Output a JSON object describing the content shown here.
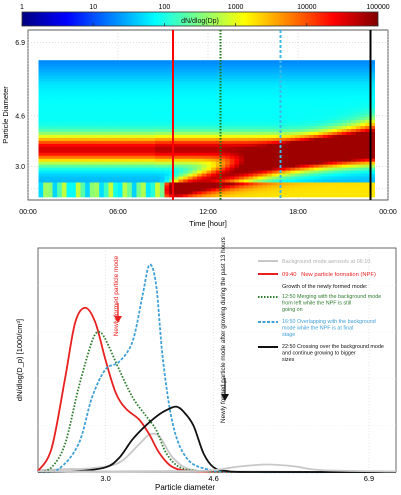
{
  "chart_data": [
    {
      "type": "heatmap",
      "colorbar": {
        "label": "dN/dlog(Dp)",
        "ticks": [
          "1",
          "10",
          "100",
          "1000",
          "10000",
          "100000"
        ],
        "scale": "log",
        "range": [
          1,
          100000
        ],
        "colors": [
          "#00007f",
          "#0000ff",
          "#0080ff",
          "#00ffff",
          "#80ff80",
          "#ffff00",
          "#ff8000",
          "#ff0000",
          "#7f0000"
        ]
      },
      "xlabel": "Time [hour]",
      "ylabel": "Particle Diameter",
      "x_ticks": [
        "00:00",
        "06:00",
        "12:00",
        "18:00",
        "00:00"
      ],
      "y_ticks": [
        "6.9",
        "4.6",
        "3.0"
      ],
      "xlim": [
        0,
        24
      ],
      "ylim": [
        1.95,
        7.3
      ],
      "grid": true,
      "vlines": [
        {
          "time": "09:40",
          "color": "#ff0000",
          "style": "solid"
        },
        {
          "time": "12:50",
          "color": "#1a7a1a",
          "style": "dotted"
        },
        {
          "time": "16:50",
          "color": "#3fb8e8",
          "style": "dashed"
        },
        {
          "time": "22:50",
          "color": "#000000",
          "style": "solid"
        }
      ]
    },
    {
      "type": "line",
      "xlabel": "Particle diameter",
      "ylabel": "dN/dlog(D_p) [1000/cm³]",
      "x_ticks": [
        "3.0",
        "4.6",
        "6.9"
      ],
      "xlim": [
        2.0,
        7.3
      ],
      "ylim": [
        0,
        24
      ],
      "legend": {
        "placement": "right",
        "header": "Growth of the newly formed mode:",
        "entries": [
          {
            "time": "",
            "text": "Background mode aerosols at 06:10",
            "color": "#c8c8c8",
            "style": "solid"
          },
          {
            "time": "09:40",
            "text": "New particle formation (NPF)",
            "color": "#e82020",
            "style": "solid"
          },
          {
            "time": "12:50",
            "text": "Merging with the background mode from left while the NPF is still going on",
            "color": "#2e7d2e",
            "style": "dotted"
          },
          {
            "time": "16:50",
            "text": "Overlapping with the background mode while the NPF is at final stage",
            "color": "#3fa0d8",
            "style": "dashed"
          },
          {
            "time": "22:50",
            "text": "Crossing over the background mode and continue growing to bigger sizes",
            "color": "#111111",
            "style": "solid"
          }
        ]
      },
      "annotations": [
        {
          "text": "Newly formed particle mode",
          "color": "#e82020"
        },
        {
          "text": "Newly formed particle mode after growing during the past 13 hours",
          "color": "#111111"
        }
      ],
      "series": [
        {
          "time": "06:10",
          "color": "#c8c8c8",
          "x": [
            2.0,
            2.4,
            2.8,
            3.2,
            3.5,
            3.65,
            3.8,
            4.0,
            4.3,
            5.0,
            7.3
          ],
          "y": [
            0.2,
            0.3,
            0.4,
            1.0,
            3.0,
            4.0,
            3.8,
            1.5,
            0.2,
            0.05,
            0
          ]
        },
        {
          "time": "09:40",
          "color": "#e82020",
          "x": [
            2.0,
            2.2,
            2.4,
            2.55,
            2.7,
            2.85,
            3.0,
            3.15,
            3.3,
            3.5,
            3.65,
            3.8,
            4.0,
            4.3,
            5.0,
            7.3
          ],
          "y": [
            0.1,
            2.5,
            10.0,
            16.0,
            17.6,
            16.0,
            12.0,
            8.5,
            6.8,
            5.6,
            4.0,
            2.0,
            0.5,
            0.1,
            0,
            0
          ]
        },
        {
          "time": "12:50",
          "color": "#2e7d2e",
          "x": [
            2.0,
            2.2,
            2.4,
            2.6,
            2.8,
            2.9,
            3.0,
            3.2,
            3.4,
            3.6,
            3.75,
            3.9,
            4.1,
            4.4,
            5.0,
            7.3
          ],
          "y": [
            0,
            0.5,
            3.0,
            9.0,
            14.0,
            15.0,
            14.2,
            11.0,
            8.0,
            6.0,
            4.5,
            2.0,
            0.5,
            0.1,
            0,
            0
          ]
        },
        {
          "time": "16:50",
          "color": "#3fa0d8",
          "x": [
            2.0,
            2.3,
            2.6,
            2.8,
            3.0,
            3.2,
            3.4,
            3.55,
            3.65,
            3.75,
            3.85,
            4.0,
            4.2,
            4.5,
            5.0,
            7.3
          ],
          "y": [
            0,
            0.3,
            3.0,
            8.0,
            11.0,
            11.8,
            14.0,
            19.0,
            22.2,
            20.0,
            12.0,
            5.0,
            1.5,
            0.3,
            0,
            0
          ]
        },
        {
          "time": "22:50",
          "color": "#111111",
          "x": [
            2.0,
            2.6,
            3.0,
            3.2,
            3.4,
            3.6,
            3.8,
            3.95,
            4.05,
            4.15,
            4.3,
            4.45,
            4.6,
            4.8,
            5.2,
            7.3
          ],
          "y": [
            0,
            0.1,
            0.5,
            1.5,
            3.5,
            5.0,
            6.2,
            6.8,
            7.0,
            6.5,
            5.0,
            2.0,
            0.5,
            0.1,
            0,
            0
          ]
        },
        {
          "time": "",
          "color": "#c8c8c8",
          "x": [
            2.0,
            4.2,
            4.6,
            5.0,
            5.4,
            5.8,
            6.2,
            7.3
          ],
          "y": [
            0.05,
            0.1,
            0.2,
            0.6,
            0.8,
            0.6,
            0.2,
            0.05
          ]
        }
      ]
    }
  ]
}
